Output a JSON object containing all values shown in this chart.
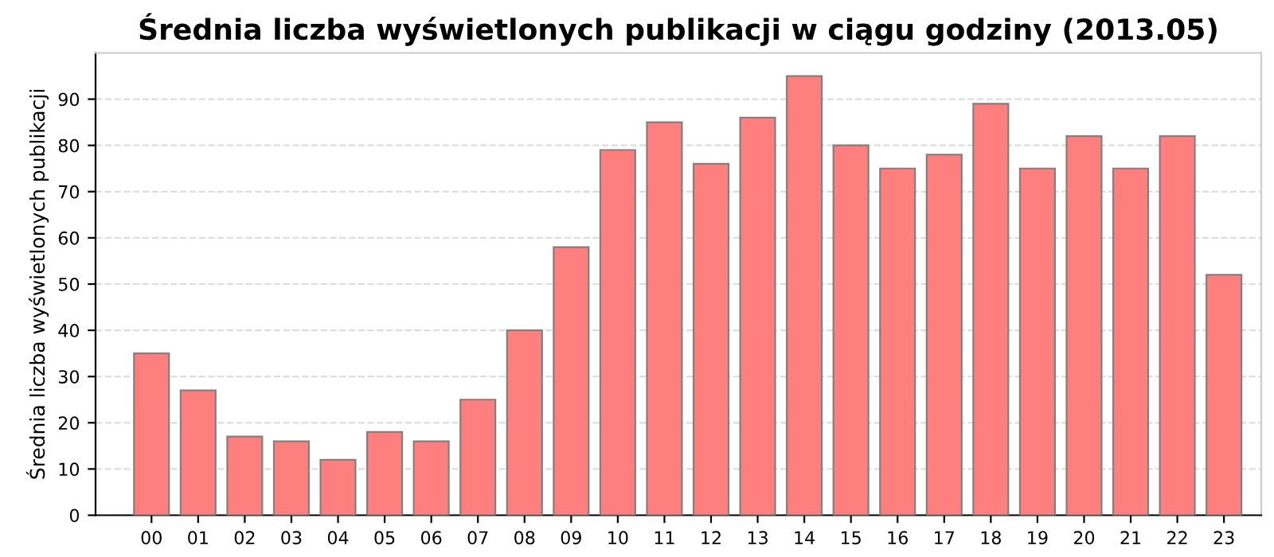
{
  "chart_data": {
    "type": "bar",
    "title": "Średnia liczba wyświetlonych publikacji w ciągu godziny (2013.05)",
    "ylabel": "Średnia liczba wyświetlonych publikacji",
    "categories": [
      "00",
      "01",
      "02",
      "03",
      "04",
      "05",
      "06",
      "07",
      "08",
      "09",
      "10",
      "11",
      "12",
      "13",
      "14",
      "15",
      "16",
      "17",
      "18",
      "19",
      "20",
      "21",
      "22",
      "23"
    ],
    "values": [
      35,
      27,
      17,
      16,
      12,
      18,
      16,
      25,
      40,
      58,
      79,
      85,
      76,
      86,
      95,
      80,
      75,
      78,
      89,
      75,
      82,
      75,
      82,
      52
    ],
    "color": "#ff7f7f",
    "ylim": [
      0,
      100
    ],
    "yticks": [
      0,
      10,
      20,
      30,
      40,
      50,
      60,
      70,
      80,
      90
    ],
    "grid": "y",
    "legend": false
  }
}
